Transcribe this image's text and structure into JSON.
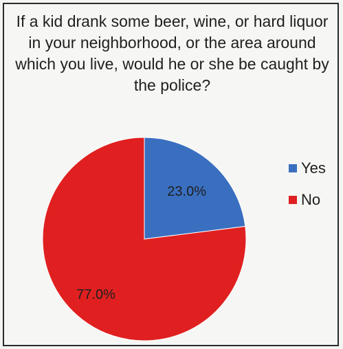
{
  "chart_data": {
    "type": "pie",
    "title": "If a kid drank some beer, wine, or hard liquor in your neighborhood, or the area around which you live, would he or she be caught by the police?",
    "legend_position": "right",
    "slices": [
      {
        "label": "Yes",
        "value": 23.0,
        "display": "23.0%",
        "color": "#3a6fc0"
      },
      {
        "label": "No",
        "value": 77.0,
        "display": "77.0%",
        "color": "#e02020"
      }
    ]
  }
}
